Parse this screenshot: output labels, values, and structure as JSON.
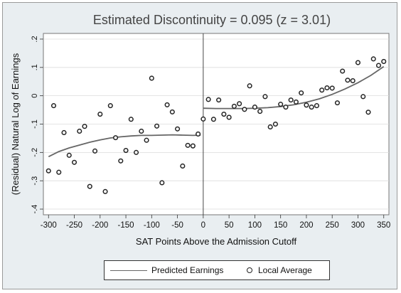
{
  "chart_data": {
    "type": "scatter",
    "title": "Estimated Discontinuity = 0.095 (z = 3.01)",
    "xlabel": "SAT Points Above the Admission Cutoff",
    "ylabel": "(Residual) Natural Log of Earnings",
    "xlim": [
      -310,
      360
    ],
    "ylim": [
      -0.42,
      0.22
    ],
    "xticks": [
      -300,
      -250,
      -200,
      -150,
      -100,
      -50,
      0,
      50,
      100,
      150,
      200,
      250,
      300,
      350
    ],
    "xtick_labels": [
      "-300",
      "-250",
      "-200",
      "-150",
      "-100",
      "-50",
      "0",
      "50",
      "100",
      "150",
      "200",
      "250",
      "300",
      "350"
    ],
    "yticks": [
      0.2,
      0.1,
      0,
      -0.1,
      -0.2,
      -0.3,
      -0.4
    ],
    "ytick_labels": [
      ".2",
      ".1",
      "0",
      "-.1",
      "-.2",
      "-.3",
      "-.4"
    ],
    "cutoff_x": 0,
    "grid": "horizontal",
    "legend_position": "bottom",
    "colors": {
      "plot_background": "#ffffff",
      "outer_background": "#e9eef1",
      "fitted_line": "#666666",
      "points": "#222222",
      "grid": "#dcdcdc"
    },
    "series": [
      {
        "name": "Predicted Earnings",
        "kind": "line",
        "segments": [
          {
            "x": [
              -300,
              -280,
              -260,
              -240,
              -220,
              -200,
              -180,
              -160,
              -140,
              -120,
              -100,
              -80,
              -60,
              -40,
              -20,
              -5
            ],
            "y": [
              -0.215,
              -0.197,
              -0.184,
              -0.174,
              -0.164,
              -0.156,
              -0.149,
              -0.145,
              -0.142,
              -0.14,
              -0.14,
              -0.139,
              -0.138,
              -0.139,
              -0.14,
              -0.139
            ]
          },
          {
            "x": [
              0,
              25,
              50,
              75,
              100,
              125,
              150,
              175,
              200,
              225,
              250,
              275,
              300,
              325,
              350
            ],
            "y": [
              -0.044,
              -0.045,
              -0.045,
              -0.045,
              -0.044,
              -0.042,
              -0.038,
              -0.032,
              -0.023,
              -0.011,
              0.005,
              0.024,
              0.046,
              0.072,
              0.103
            ]
          }
        ]
      },
      {
        "name": "Local Average",
        "kind": "scatter",
        "x": [
          -300,
          -290,
          -280,
          -270,
          -260,
          -250,
          -240,
          -230,
          -220,
          -210,
          -200,
          -190,
          -180,
          -170,
          -160,
          -150,
          -140,
          -130,
          -120,
          -110,
          -100,
          -90,
          -80,
          -70,
          -60,
          -50,
          -40,
          -30,
          -20,
          -10,
          0,
          10,
          20,
          30,
          40,
          50,
          60,
          70,
          80,
          90,
          100,
          110,
          120,
          130,
          140,
          150,
          160,
          170,
          180,
          190,
          200,
          210,
          220,
          230,
          240,
          250,
          260,
          270,
          280,
          290,
          300,
          310,
          320,
          330,
          340,
          350
        ],
        "y": [
          -0.265,
          -0.035,
          -0.27,
          -0.13,
          -0.21,
          -0.235,
          -0.125,
          -0.108,
          -0.32,
          -0.195,
          -0.065,
          -0.338,
          -0.035,
          -0.148,
          -0.23,
          -0.193,
          -0.083,
          -0.2,
          -0.125,
          -0.157,
          0.062,
          -0.107,
          -0.307,
          -0.032,
          -0.057,
          -0.117,
          -0.248,
          -0.175,
          -0.177,
          -0.135,
          -0.082,
          -0.013,
          -0.083,
          -0.015,
          -0.065,
          -0.076,
          -0.037,
          -0.028,
          -0.048,
          0.035,
          -0.04,
          -0.055,
          -0.003,
          -0.11,
          -0.1,
          -0.03,
          -0.04,
          -0.015,
          -0.022,
          0.01,
          -0.033,
          -0.04,
          -0.035,
          0.02,
          0.028,
          0.027,
          -0.025,
          0.087,
          0.055,
          0.053,
          0.117,
          -0.003,
          -0.058,
          0.13,
          0.107,
          0.121
        ]
      }
    ]
  }
}
